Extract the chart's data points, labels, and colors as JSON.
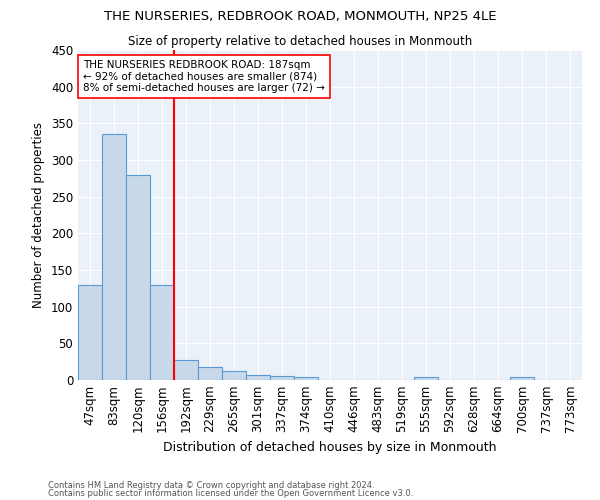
{
  "title": "THE NURSERIES, REDBROOK ROAD, MONMOUTH, NP25 4LE",
  "subtitle": "Size of property relative to detached houses in Monmouth",
  "xlabel": "Distribution of detached houses by size in Monmouth",
  "ylabel": "Number of detached properties",
  "footnote1": "Contains HM Land Registry data © Crown copyright and database right 2024.",
  "footnote2": "Contains public sector information licensed under the Open Government Licence v3.0.",
  "bar_labels": [
    "47sqm",
    "83sqm",
    "120sqm",
    "156sqm",
    "192sqm",
    "229sqm",
    "265sqm",
    "301sqm",
    "337sqm",
    "374sqm",
    "410sqm",
    "446sqm",
    "483sqm",
    "519sqm",
    "555sqm",
    "592sqm",
    "628sqm",
    "664sqm",
    "700sqm",
    "737sqm",
    "773sqm"
  ],
  "bar_values": [
    130,
    335,
    280,
    130,
    27,
    18,
    12,
    7,
    5,
    4,
    0,
    0,
    0,
    0,
    4,
    0,
    0,
    0,
    4,
    0,
    0
  ],
  "bar_color": "#c8d9ea",
  "bar_edgecolor": "#5b9bd5",
  "vline_bar_index": 4,
  "vline_color": "red",
  "annotation_text": "THE NURSERIES REDBROOK ROAD: 187sqm\n← 92% of detached houses are smaller (874)\n8% of semi-detached houses are larger (72) →",
  "annotation_bbox_color": "white",
  "annotation_bbox_edgecolor": "red",
  "ylim": [
    0,
    450
  ],
  "background_color": "#eaf1f8",
  "grid_color": "white"
}
